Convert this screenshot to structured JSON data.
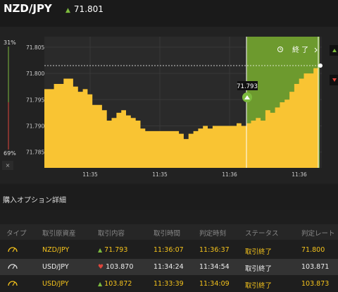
{
  "header": {
    "pair": "NZD/JPY",
    "rate": "71.801",
    "trend_icon": "up-arrow-icon"
  },
  "chart": {
    "ratio_top": "31%",
    "ratio_bottom": "69%",
    "close_label": "×",
    "y_ticks": [
      "71.805",
      "71.800",
      "71.795",
      "71.790",
      "71.785"
    ],
    "x_ticks": [
      "11:35",
      "11:35",
      "11:36",
      "11:36"
    ],
    "marker_label": "71.793",
    "end_label": "終 了",
    "colors": {
      "area": "#f9c433",
      "end_zone": "#6d9a2e",
      "bg": "#2a2a2a"
    }
  },
  "chart_data": {
    "type": "area",
    "ylim": [
      71.782,
      71.807
    ],
    "values": [
      71.797,
      71.797,
      71.798,
      71.798,
      71.799,
      71.799,
      71.7975,
      71.7965,
      71.797,
      71.796,
      71.794,
      71.794,
      71.793,
      71.791,
      71.7915,
      71.7925,
      71.793,
      71.792,
      71.7915,
      71.791,
      71.7895,
      71.789,
      71.789,
      71.789,
      71.789,
      71.789,
      71.789,
      71.789,
      71.7885,
      71.7875,
      71.7885,
      71.789,
      71.7895,
      71.79,
      71.7895,
      71.79,
      71.79,
      71.79,
      71.79,
      71.79,
      71.7905,
      71.79,
      71.7905,
      71.791,
      71.7915,
      71.791,
      71.793,
      71.7925,
      71.7935,
      71.7945,
      71.795,
      71.7965,
      71.798,
      71.799,
      71.8,
      71.8,
      71.801,
      71.801
    ]
  },
  "section": {
    "title": "購入オプション詳細"
  },
  "table": {
    "headers": [
      "タイプ",
      "取引原資産",
      "取引内容",
      "取引時間",
      "判定時刻",
      "ステータス",
      "判定レート"
    ],
    "rows": [
      {
        "pair": "NZD/JPY",
        "direction": "up",
        "rate": "71.793",
        "trade_time": "11:36:07",
        "judge_time": "11:36:37",
        "status": "取引終了",
        "judge_rate": "71.800",
        "active": true
      },
      {
        "pair": "USD/JPY",
        "direction": "down",
        "rate": "103.870",
        "trade_time": "11:34:24",
        "judge_time": "11:34:54",
        "status": "取引終了",
        "judge_rate": "103.871",
        "active": false
      },
      {
        "pair": "USD/JPY",
        "direction": "up",
        "rate": "103.872",
        "trade_time": "11:33:39",
        "judge_time": "11:34:09",
        "status": "取引終了",
        "judge_rate": "103.873",
        "active": true
      }
    ]
  }
}
